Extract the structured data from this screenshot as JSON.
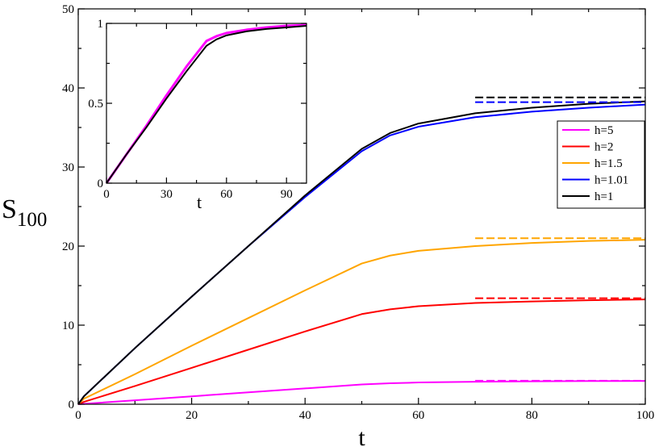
{
  "chart_data": [
    {
      "type": "line",
      "title": "",
      "xlabel": "t",
      "ylabel_main": "S",
      "ylabel_sub": "100",
      "xlim": [
        0,
        100
      ],
      "ylim": [
        0,
        50
      ],
      "xticks": [
        0,
        20,
        40,
        60,
        80,
        100
      ],
      "yticks": [
        0,
        10,
        20,
        30,
        40,
        50
      ],
      "grid": false,
      "legend_position": "right",
      "series": [
        {
          "name": "h=5",
          "color": "#ff00ff",
          "points": [
            [
              0,
              0
            ],
            [
              10,
              0.5
            ],
            [
              20,
              1.0
            ],
            [
              30,
              1.5
            ],
            [
              40,
              2.0
            ],
            [
              50,
              2.5
            ],
            [
              55,
              2.65
            ],
            [
              60,
              2.75
            ],
            [
              70,
              2.85
            ],
            [
              80,
              2.9
            ],
            [
              90,
              2.93
            ],
            [
              100,
              2.95
            ]
          ],
          "asymptote": 2.97
        },
        {
          "name": "h=2",
          "color": "#ff0000",
          "points": [
            [
              0,
              0
            ],
            [
              1,
              0.3
            ],
            [
              10,
              2.3
            ],
            [
              20,
              4.6
            ],
            [
              30,
              6.9
            ],
            [
              40,
              9.2
            ],
            [
              50,
              11.4
            ],
            [
              55,
              12.0
            ],
            [
              60,
              12.4
            ],
            [
              70,
              12.8
            ],
            [
              80,
              13.0
            ],
            [
              90,
              13.15
            ],
            [
              100,
              13.25
            ]
          ],
          "asymptote": 13.4
        },
        {
          "name": "h=1.5",
          "color": "#ffa500",
          "points": [
            [
              0,
              0
            ],
            [
              1,
              0.7
            ],
            [
              10,
              3.8
            ],
            [
              20,
              7.4
            ],
            [
              30,
              10.9
            ],
            [
              40,
              14.4
            ],
            [
              50,
              17.8
            ],
            [
              55,
              18.8
            ],
            [
              60,
              19.4
            ],
            [
              70,
              20.0
            ],
            [
              80,
              20.4
            ],
            [
              90,
              20.65
            ],
            [
              100,
              20.8
            ]
          ],
          "asymptote": 21.0
        },
        {
          "name": "h=1.01",
          "color": "#0000ff",
          "points": [
            [
              0,
              0
            ],
            [
              1,
              1.0
            ],
            [
              10,
              7.1
            ],
            [
              20,
              13.6
            ],
            [
              30,
              20.0
            ],
            [
              40,
              26.2
            ],
            [
              50,
              32.0
            ],
            [
              55,
              34.0
            ],
            [
              60,
              35.1
            ],
            [
              70,
              36.3
            ],
            [
              80,
              37.0
            ],
            [
              90,
              37.5
            ],
            [
              100,
              37.9
            ]
          ],
          "asymptote": 38.2
        },
        {
          "name": "h=1",
          "color": "#000000",
          "points": [
            [
              0,
              0
            ],
            [
              1,
              1.0
            ],
            [
              10,
              7.1
            ],
            [
              20,
              13.6
            ],
            [
              30,
              20.0
            ],
            [
              40,
              26.4
            ],
            [
              50,
              32.3
            ],
            [
              55,
              34.3
            ],
            [
              60,
              35.5
            ],
            [
              70,
              36.8
            ],
            [
              80,
              37.5
            ],
            [
              90,
              38.0
            ],
            [
              100,
              38.3
            ]
          ],
          "asymptote": 38.8
        }
      ],
      "asymptote_x_range": [
        70,
        100
      ]
    },
    {
      "type": "line",
      "title": "",
      "xlabel": "t",
      "xlim": [
        0,
        100
      ],
      "ylim": [
        0,
        1
      ],
      "xticks": [
        0,
        30,
        60,
        90
      ],
      "yticks": [
        0,
        0.5,
        1
      ],
      "ytick_labels": [
        "0",
        "0.5",
        "1"
      ],
      "grid": false,
      "series": [
        {
          "name": "h=5",
          "color": "#ff00ff",
          "points": [
            [
              0,
              0
            ],
            [
              10,
              0.18
            ],
            [
              20,
              0.36
            ],
            [
              30,
              0.55
            ],
            [
              40,
              0.73
            ],
            [
              50,
              0.89
            ],
            [
              55,
              0.92
            ],
            [
              60,
              0.94
            ],
            [
              70,
              0.96
            ],
            [
              80,
              0.975
            ],
            [
              90,
              0.985
            ],
            [
              100,
              0.99
            ]
          ]
        },
        {
          "name": "h=1",
          "color": "#000000",
          "points": [
            [
              0,
              0
            ],
            [
              10,
              0.18
            ],
            [
              20,
              0.35
            ],
            [
              30,
              0.53
            ],
            [
              40,
              0.7
            ],
            [
              50,
              0.86
            ],
            [
              55,
              0.9
            ],
            [
              60,
              0.925
            ],
            [
              70,
              0.95
            ],
            [
              80,
              0.965
            ],
            [
              90,
              0.975
            ],
            [
              100,
              0.985
            ]
          ]
        }
      ]
    }
  ]
}
